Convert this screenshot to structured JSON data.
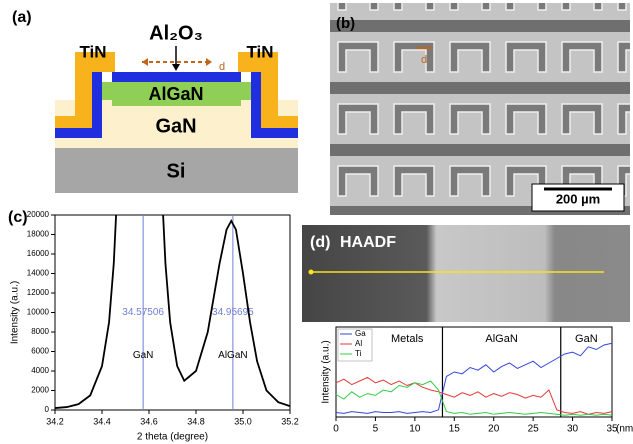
{
  "panel_a": {
    "label": "(a)",
    "layers": {
      "al2o3": "Al₂O₃",
      "tin_left": "TiN",
      "tin_right": "TiN",
      "d": "d",
      "algan": "AlGaN",
      "gan": "GaN",
      "si": "Si"
    }
  },
  "panel_b": {
    "label": "(b)",
    "d": "d",
    "scale_bar": "200 µm"
  },
  "panel_d_image": {
    "label": "(d)",
    "mode": "HAADF"
  },
  "chart_data": [
    {
      "type": "line",
      "label": "(c)",
      "x_label": "2 theta (degree)",
      "y_label": "Intensity (a.u.)",
      "xlim": [
        34.2,
        35.2
      ],
      "xticks": [
        34.2,
        34.4,
        34.6,
        34.8,
        {
          "value": 35,
          "label": "35.0"
        },
        35.2
      ],
      "ylim": [
        0,
        20000
      ],
      "yticks": [
        0,
        2000,
        4000,
        6000,
        8000,
        10000,
        12000,
        14000,
        16000,
        18000,
        20000
      ],
      "x": [
        34.2,
        34.25,
        34.3,
        34.35,
        34.4,
        34.43,
        34.45,
        34.46,
        34.57,
        34.66,
        34.67,
        34.69,
        34.72,
        34.75,
        34.8,
        34.85,
        34.9,
        34.93,
        34.95,
        34.97,
        35.0,
        35.03,
        35.06,
        35.1,
        35.15,
        35.2
      ],
      "series": [
        {
          "color": "#000000",
          "values": [
            200,
            300,
            600,
            1500,
            4500,
            9000,
            15000,
            20000,
            null,
            20000,
            15000,
            9000,
            4500,
            3000,
            4000,
            8000,
            15000,
            18500,
            19400,
            18500,
            14000,
            9000,
            5000,
            2000,
            800,
            400
          ]
        }
      ],
      "vlines": [
        34.57506,
        34.95695
      ],
      "vline_color": "#6f7fd8",
      "annotations": [
        "GaN",
        "AlGaN"
      ]
    },
    {
      "type": "line",
      "x_label": "(nm)",
      "y_label": "Intensity (a.u.)",
      "xlim": [
        0,
        35
      ],
      "xticks": [
        0,
        5,
        10,
        15,
        20,
        25,
        30,
        35
      ],
      "ylim": [
        0,
        100
      ],
      "regions": [
        "Metals",
        "AlGaN",
        "GaN"
      ],
      "boundaries": [
        13.5,
        28.5
      ],
      "legend": "upper left",
      "x": [
        0,
        1,
        2,
        3,
        4,
        5,
        6,
        7,
        8,
        9,
        10,
        11,
        12,
        13,
        14,
        15,
        16,
        17,
        18,
        19,
        20,
        21,
        22,
        23,
        24,
        25,
        26,
        27,
        28,
        29,
        30,
        31,
        32,
        33,
        34,
        35
      ],
      "series": [
        {
          "name": "Ga",
          "color": "#3344dd",
          "values": [
            5,
            4,
            6,
            5,
            4,
            6,
            5,
            5,
            6,
            4,
            5,
            6,
            5,
            8,
            45,
            50,
            48,
            55,
            52,
            58,
            50,
            56,
            60,
            54,
            58,
            62,
            55,
            60,
            65,
            70,
            72,
            68,
            78,
            75,
            80,
            82
          ]
        },
        {
          "name": "Al",
          "color": "#e03a3a",
          "values": [
            38,
            42,
            36,
            40,
            44,
            38,
            41,
            36,
            40,
            35,
            38,
            33,
            30,
            28,
            25,
            22,
            27,
            24,
            28,
            22,
            26,
            23,
            27,
            25,
            21,
            24,
            22,
            30,
            8,
            5,
            4,
            6,
            3,
            5,
            4,
            6
          ]
        },
        {
          "name": "Ti",
          "color": "#33cc44",
          "values": [
            25,
            20,
            28,
            22,
            26,
            24,
            30,
            28,
            35,
            33,
            38,
            36,
            40,
            30,
            6,
            4,
            5,
            3,
            4,
            5,
            3,
            4,
            5,
            4,
            3,
            4,
            5,
            4,
            3,
            2,
            3,
            2,
            3,
            2,
            3,
            2
          ]
        }
      ]
    }
  ]
}
